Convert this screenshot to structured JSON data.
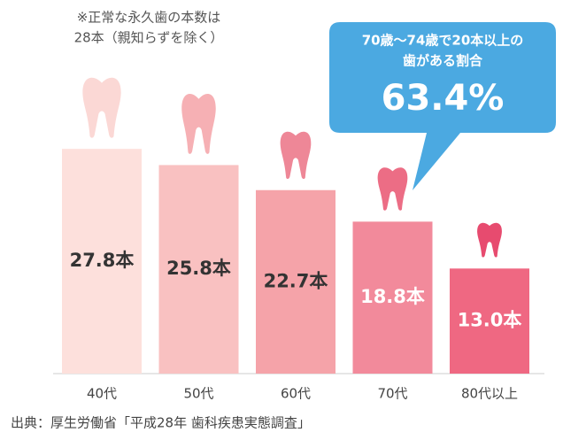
{
  "chart_data": {
    "type": "bar",
    "note": [
      "※正常な永久歯の本数は",
      "28本（親知らずを除く）"
    ],
    "categories": [
      "40代",
      "50代",
      "60代",
      "70代",
      "80代以上"
    ],
    "values": [
      27.8,
      25.8,
      22.7,
      18.8,
      13.0
    ],
    "value_labels": [
      "27.8本",
      "25.8本",
      "22.7本",
      "18.8本",
      "13.0本"
    ],
    "colors": [
      "#fde0dc",
      "#f9c1c1",
      "#f5a3a9",
      "#f28a9b",
      "#ef6882"
    ],
    "callout": {
      "lines": [
        "70歳〜74歳で20本以上の",
        "歯がある割合"
      ],
      "value": "63.4%"
    },
    "source": "出典：厚生労働省「平成28年 歯科疾患実態調査」"
  }
}
